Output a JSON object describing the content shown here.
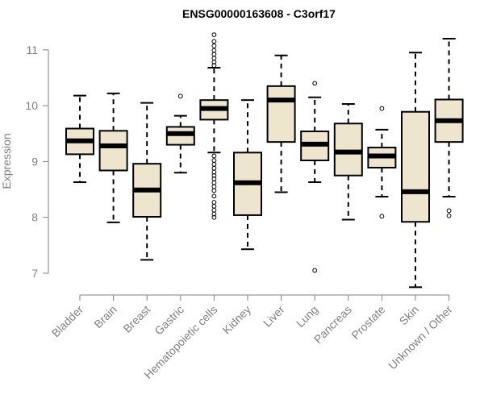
{
  "chart_data": {
    "type": "boxplot",
    "title": "ENSG00000163608 - C3orf17",
    "xlabel": "",
    "ylabel": "Expression",
    "ylim": [
      6.75,
      11.3
    ],
    "yticks": [
      7,
      8,
      9,
      10,
      11
    ],
    "box_fill": "#ede5cd",
    "series": [
      {
        "name": "Bladder",
        "whisker_low": 8.63,
        "q1": 9.13,
        "median": 9.37,
        "q3": 9.59,
        "whisker_high": 10.18,
        "outliers": []
      },
      {
        "name": "Brain",
        "whisker_low": 7.91,
        "q1": 8.84,
        "median": 9.28,
        "q3": 9.55,
        "whisker_high": 10.22,
        "outliers": []
      },
      {
        "name": "Breast",
        "whisker_low": 7.24,
        "q1": 8.01,
        "median": 8.49,
        "q3": 8.96,
        "whisker_high": 10.05,
        "outliers": []
      },
      {
        "name": "Gastric",
        "whisker_low": 8.8,
        "q1": 9.3,
        "median": 9.5,
        "q3": 9.62,
        "whisker_high": 9.82,
        "outliers": [
          10.17
        ]
      },
      {
        "name": "Hematopoietic cells",
        "whisker_low": 9.16,
        "q1": 9.75,
        "median": 9.95,
        "q3": 10.1,
        "whisker_high": 10.68,
        "outliers": [
          11.27,
          11.15,
          11.07,
          10.99,
          10.92,
          10.85,
          10.78,
          10.72,
          9.1,
          9.02,
          8.95,
          8.88,
          8.81,
          8.75,
          8.69,
          8.62,
          8.55,
          8.48,
          8.38,
          8.27,
          8.2,
          8.13,
          8.06,
          8.0
        ]
      },
      {
        "name": "Kidney",
        "whisker_low": 7.43,
        "q1": 8.04,
        "median": 8.62,
        "q3": 9.16,
        "whisker_high": 10.1,
        "outliers": []
      },
      {
        "name": "Liver",
        "whisker_low": 8.45,
        "q1": 9.35,
        "median": 10.1,
        "q3": 10.35,
        "whisker_high": 10.9,
        "outliers": []
      },
      {
        "name": "Lung",
        "whisker_low": 8.63,
        "q1": 9.02,
        "median": 9.31,
        "q3": 9.54,
        "whisker_high": 10.15,
        "outliers": [
          10.4,
          7.05
        ]
      },
      {
        "name": "Pancreas",
        "whisker_low": 7.96,
        "q1": 8.75,
        "median": 9.17,
        "q3": 9.68,
        "whisker_high": 10.03,
        "outliers": []
      },
      {
        "name": "Prostate",
        "whisker_low": 8.37,
        "q1": 8.89,
        "median": 9.1,
        "q3": 9.25,
        "whisker_high": 9.57,
        "outliers": [
          9.95,
          8.02
        ]
      },
      {
        "name": "Skin",
        "whisker_low": 6.75,
        "q1": 7.92,
        "median": 8.46,
        "q3": 9.89,
        "whisker_high": 10.95,
        "outliers": []
      },
      {
        "name": "Unknown / Other",
        "whisker_low": 8.37,
        "q1": 9.35,
        "median": 9.73,
        "q3": 10.11,
        "whisker_high": 11.2,
        "outliers": [
          8.12,
          8.03
        ]
      }
    ]
  }
}
